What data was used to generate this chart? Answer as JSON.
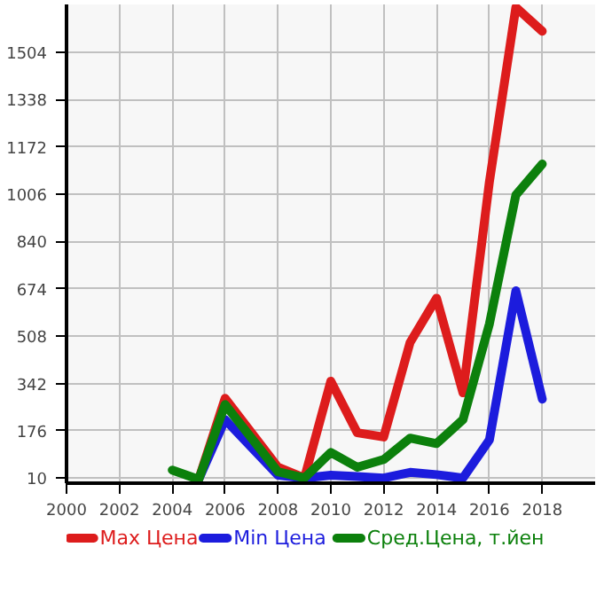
{
  "chart_data": {
    "type": "line",
    "xlim": [
      2000,
      2020
    ],
    "ylim": [
      -8,
      1672
    ],
    "xticks": [
      2000,
      2002,
      2004,
      2006,
      2008,
      2010,
      2012,
      2014,
      2016,
      2018
    ],
    "yticks": [
      10,
      176,
      342,
      508,
      674,
      840,
      1006,
      1172,
      1338,
      1504
    ],
    "grid": true,
    "legend": "bottom",
    "line_style": "solid",
    "marker": "none",
    "series": [
      {
        "name": "Max Цена",
        "color": "#dd1c1c",
        "x": [
          2005,
          2006,
          2008,
          2009,
          2010,
          2011,
          2012,
          2013,
          2014,
          2015,
          2016,
          2017,
          2018
        ],
        "values": [
          5,
          290,
          48,
          10,
          350,
          169,
          154,
          486,
          641,
          309,
          1050,
          1662,
          1578
        ]
      },
      {
        "name": "Min Цена",
        "color": "#1c1cdd",
        "x": [
          2005,
          2006,
          2008,
          2009,
          2010,
          2011,
          2012,
          2013,
          2014,
          2015,
          2016,
          2017,
          2018
        ],
        "values": [
          5,
          215,
          20,
          10,
          20,
          15,
          10,
          30,
          22,
          10,
          144,
          667,
          287
        ]
      },
      {
        "name": "Сред.Цена, т.йен",
        "color": "#0c800c",
        "x": [
          2004,
          2005,
          2006,
          2008,
          2009,
          2010,
          2011,
          2012,
          2013,
          2014,
          2015,
          2016,
          2017,
          2018
        ],
        "values": [
          38,
          5,
          268,
          32,
          10,
          100,
          48,
          75,
          150,
          131,
          215,
          551,
          1003,
          1112
        ]
      }
    ]
  }
}
